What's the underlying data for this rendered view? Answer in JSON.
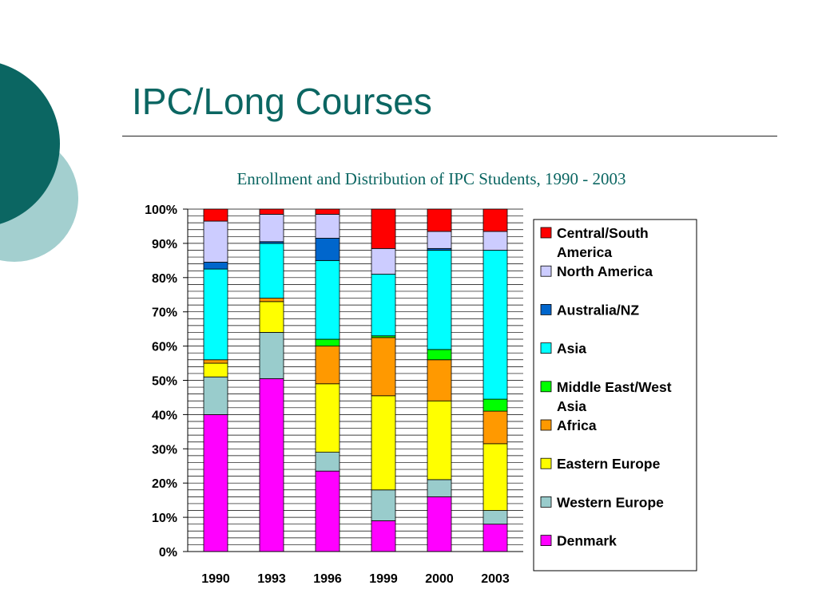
{
  "slide": {
    "title": "IPC/Long Courses",
    "colors": {
      "title": "#0b6662",
      "circle_dark": "#0b6662",
      "circle_light": "#a3cfcf"
    }
  },
  "chart_data": {
    "type": "bar",
    "stacked": "percent",
    "title": "Enrollment and Distribution of IPC Students, 1990 - 2003",
    "xlabel": "",
    "ylabel": "",
    "categories": [
      "1990",
      "1993",
      "1996",
      "1999",
      "2000",
      "2003"
    ],
    "ylim": [
      0,
      100
    ],
    "yticks": [
      "0%",
      "10%",
      "20%",
      "30%",
      "40%",
      "50%",
      "60%",
      "70%",
      "80%",
      "90%",
      "100%"
    ],
    "grid": true,
    "legend": "right",
    "series": [
      {
        "name": "Denmark",
        "color": "#ff00ff",
        "values": [
          40,
          50.5,
          23.5,
          9,
          16,
          8
        ]
      },
      {
        "name": "Western Europe",
        "color": "#99cccc",
        "values": [
          11,
          13.5,
          5.5,
          9,
          5,
          4
        ]
      },
      {
        "name": "Eastern Europe",
        "color": "#ffff00",
        "values": [
          4,
          9,
          20,
          27.5,
          23,
          19.5
        ]
      },
      {
        "name": "Africa",
        "color": "#ff9900",
        "values": [
          1,
          1,
          11,
          17,
          12,
          9.5
        ]
      },
      {
        "name": "Middle East/West Asia",
        "color": "#00ff00",
        "values": [
          0,
          0,
          2,
          0.5,
          3,
          3.5
        ]
      },
      {
        "name": "Asia",
        "color": "#00ffff",
        "values": [
          26.5,
          16,
          23,
          18,
          29,
          43.5
        ]
      },
      {
        "name": "Australia/NZ",
        "color": "#0066cc",
        "values": [
          2,
          0.5,
          6.5,
          0,
          0.5,
          0
        ]
      },
      {
        "name": "North America",
        "color": "#ccccff",
        "values": [
          12,
          8,
          7,
          7.5,
          5,
          5.5
        ]
      },
      {
        "name": "Central/South America",
        "color": "#ff0000",
        "values": [
          3.5,
          1.5,
          1.5,
          11.5,
          6.5,
          6.5
        ]
      }
    ],
    "legend_order": [
      "Central/South America",
      "North America",
      "Australia/NZ",
      "Asia",
      "Middle East/West Asia",
      "Africa",
      "Eastern Europe",
      "Western Europe",
      "Denmark"
    ]
  }
}
